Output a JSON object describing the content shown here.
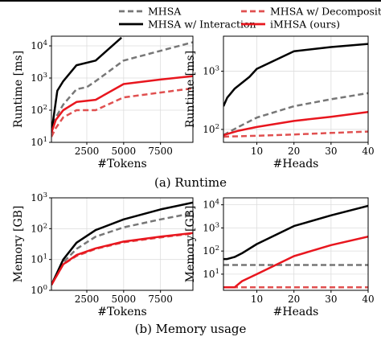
{
  "legend": [
    {
      "label": "MHSA",
      "color": "#777777",
      "dash": true
    },
    {
      "label": "MHSA w/ Decomposition",
      "color": "#e05050",
      "dash": true
    },
    {
      "label": "MHSA w/ Interaction",
      "color": "#000000",
      "dash": false
    },
    {
      "label": "iMHSA (ours)",
      "color": "#e8161e",
      "dash": false
    }
  ],
  "captions": {
    "runtime": "(a) Runtime",
    "memory": "(b) Memory usage"
  },
  "chart_data": [
    {
      "type": "line",
      "xlabel": "#Tokens",
      "ylabel": "Runtime [ms]",
      "yscale": "log",
      "xlim": [
        100,
        9700
      ],
      "ylim": [
        10,
        20000
      ],
      "xticks": [
        2500,
        5000,
        7500
      ],
      "xtick_labels": [
        "2500",
        "5000",
        "7500"
      ],
      "yticks": [
        10,
        100,
        1000,
        10000
      ],
      "ytick_labels": [
        "10^1",
        "10^2",
        "10^3",
        "10^4"
      ],
      "grid": true,
      "series": [
        {
          "name": "MHSA",
          "x": [
            100,
            200,
            400,
            900,
            1800,
            2500,
            3100,
            5000,
            9700
          ],
          "y": [
            20,
            30,
            60,
            150,
            450,
            520,
            800,
            3500,
            13000
          ]
        },
        {
          "name": "MHSA w/ Decomposition",
          "x": [
            100,
            400,
            900,
            1800,
            3100,
            5000,
            9700
          ],
          "y": [
            15,
            28,
            60,
            100,
            100,
            250,
            480
          ]
        },
        {
          "name": "MHSA w/ Interaction",
          "x": [
            100,
            500,
            900,
            1800,
            3100,
            4850
          ],
          "y": [
            20,
            400,
            800,
            2500,
            3500,
            18000
          ]
        },
        {
          "name": "iMHSA (ours)",
          "x": [
            100,
            400,
            900,
            1800,
            3100,
            5000,
            7500,
            9700
          ],
          "y": [
            20,
            50,
            100,
            180,
            210,
            650,
            900,
            1150
          ]
        }
      ]
    },
    {
      "type": "line",
      "xlabel": "#Heads",
      "ylabel": "Runtime [ms]",
      "yscale": "log",
      "xlim": [
        1,
        40
      ],
      "ylim": [
        60,
        4000
      ],
      "xticks": [
        10,
        20,
        30,
        40
      ],
      "xtick_labels": [
        "10",
        "20",
        "30",
        "40"
      ],
      "yticks": [
        100,
        1000
      ],
      "ytick_labels": [
        "10^2",
        "10^3"
      ],
      "grid": true,
      "series": [
        {
          "name": "MHSA",
          "x": [
            1,
            5,
            10,
            20,
            30,
            40
          ],
          "y": [
            80,
            110,
            160,
            250,
            330,
            420
          ]
        },
        {
          "name": "MHSA w/ Decomposition",
          "x": [
            1,
            10,
            20,
            30,
            40
          ],
          "y": [
            75,
            78,
            82,
            87,
            92
          ]
        },
        {
          "name": "MHSA w/ Interaction",
          "x": [
            1,
            2,
            4,
            8,
            10,
            20,
            30,
            40
          ],
          "y": [
            250,
            350,
            500,
            800,
            1100,
            2200,
            2600,
            2950
          ]
        },
        {
          "name": "iMHSA (ours)",
          "x": [
            1,
            5,
            10,
            20,
            30,
            40
          ],
          "y": [
            80,
            95,
            110,
            140,
            165,
            200
          ]
        }
      ]
    },
    {
      "type": "line",
      "xlabel": "#Tokens",
      "ylabel": "Memory [GB]",
      "yscale": "log",
      "xlim": [
        100,
        9700
      ],
      "ylim": [
        1,
        1000
      ],
      "xticks": [
        2500,
        5000,
        7500
      ],
      "xtick_labels": [
        "2500",
        "5000",
        "7500"
      ],
      "yticks": [
        1,
        10,
        100,
        1000
      ],
      "ytick_labels": [
        "10^0",
        "10^1",
        "10^2",
        "10^3"
      ],
      "grid": true,
      "series": [
        {
          "name": "MHSA",
          "x": [
            100,
            900,
            1800,
            3100,
            5000,
            7500,
            9700
          ],
          "y": [
            1.5,
            8,
            22,
            55,
            110,
            200,
            320
          ]
        },
        {
          "name": "MHSA w/ Decomposition",
          "x": [
            100,
            900,
            1800,
            3100,
            5000,
            7500,
            9700
          ],
          "y": [
            1.5,
            7,
            13,
            22,
            36,
            52,
            70
          ]
        },
        {
          "name": "MHSA w/ Interaction",
          "x": [
            100,
            900,
            1800,
            3100,
            5000,
            7500,
            9700
          ],
          "y": [
            1.5,
            10,
            35,
            90,
            200,
            420,
            700
          ]
        },
        {
          "name": "iMHSA (ours)",
          "x": [
            100,
            900,
            1800,
            3100,
            5000,
            7500,
            9700
          ],
          "y": [
            1.5,
            7,
            14,
            23,
            38,
            55,
            72
          ]
        }
      ]
    },
    {
      "type": "line",
      "xlabel": "#Heads",
      "ylabel": "Memory [GB]",
      "yscale": "log",
      "xlim": [
        1,
        40
      ],
      "ylim": [
        2,
        20000
      ],
      "xticks": [
        10,
        20,
        30,
        40
      ],
      "xtick_labels": [
        "10",
        "20",
        "30",
        "40"
      ],
      "yticks": [
        10,
        100,
        1000,
        10000
      ],
      "ytick_labels": [
        "10^1",
        "10^2",
        "10^3",
        "10^4"
      ],
      "grid": true,
      "series": [
        {
          "name": "MHSA",
          "x": [
            1,
            40
          ],
          "y": [
            25,
            25
          ]
        },
        {
          "name": "MHSA w/ Decomposition",
          "x": [
            1,
            40
          ],
          "y": [
            2.7,
            2.7
          ]
        },
        {
          "name": "MHSA w/ Interaction",
          "x": [
            1,
            2,
            4,
            6,
            10,
            20,
            30,
            40
          ],
          "y": [
            45,
            45,
            55,
            80,
            200,
            1200,
            3500,
            9000
          ]
        },
        {
          "name": "iMHSA (ours)",
          "x": [
            1,
            4,
            6,
            10,
            20,
            30,
            40
          ],
          "y": [
            2.7,
            2.7,
            5,
            10,
            60,
            180,
            420
          ]
        }
      ]
    }
  ]
}
